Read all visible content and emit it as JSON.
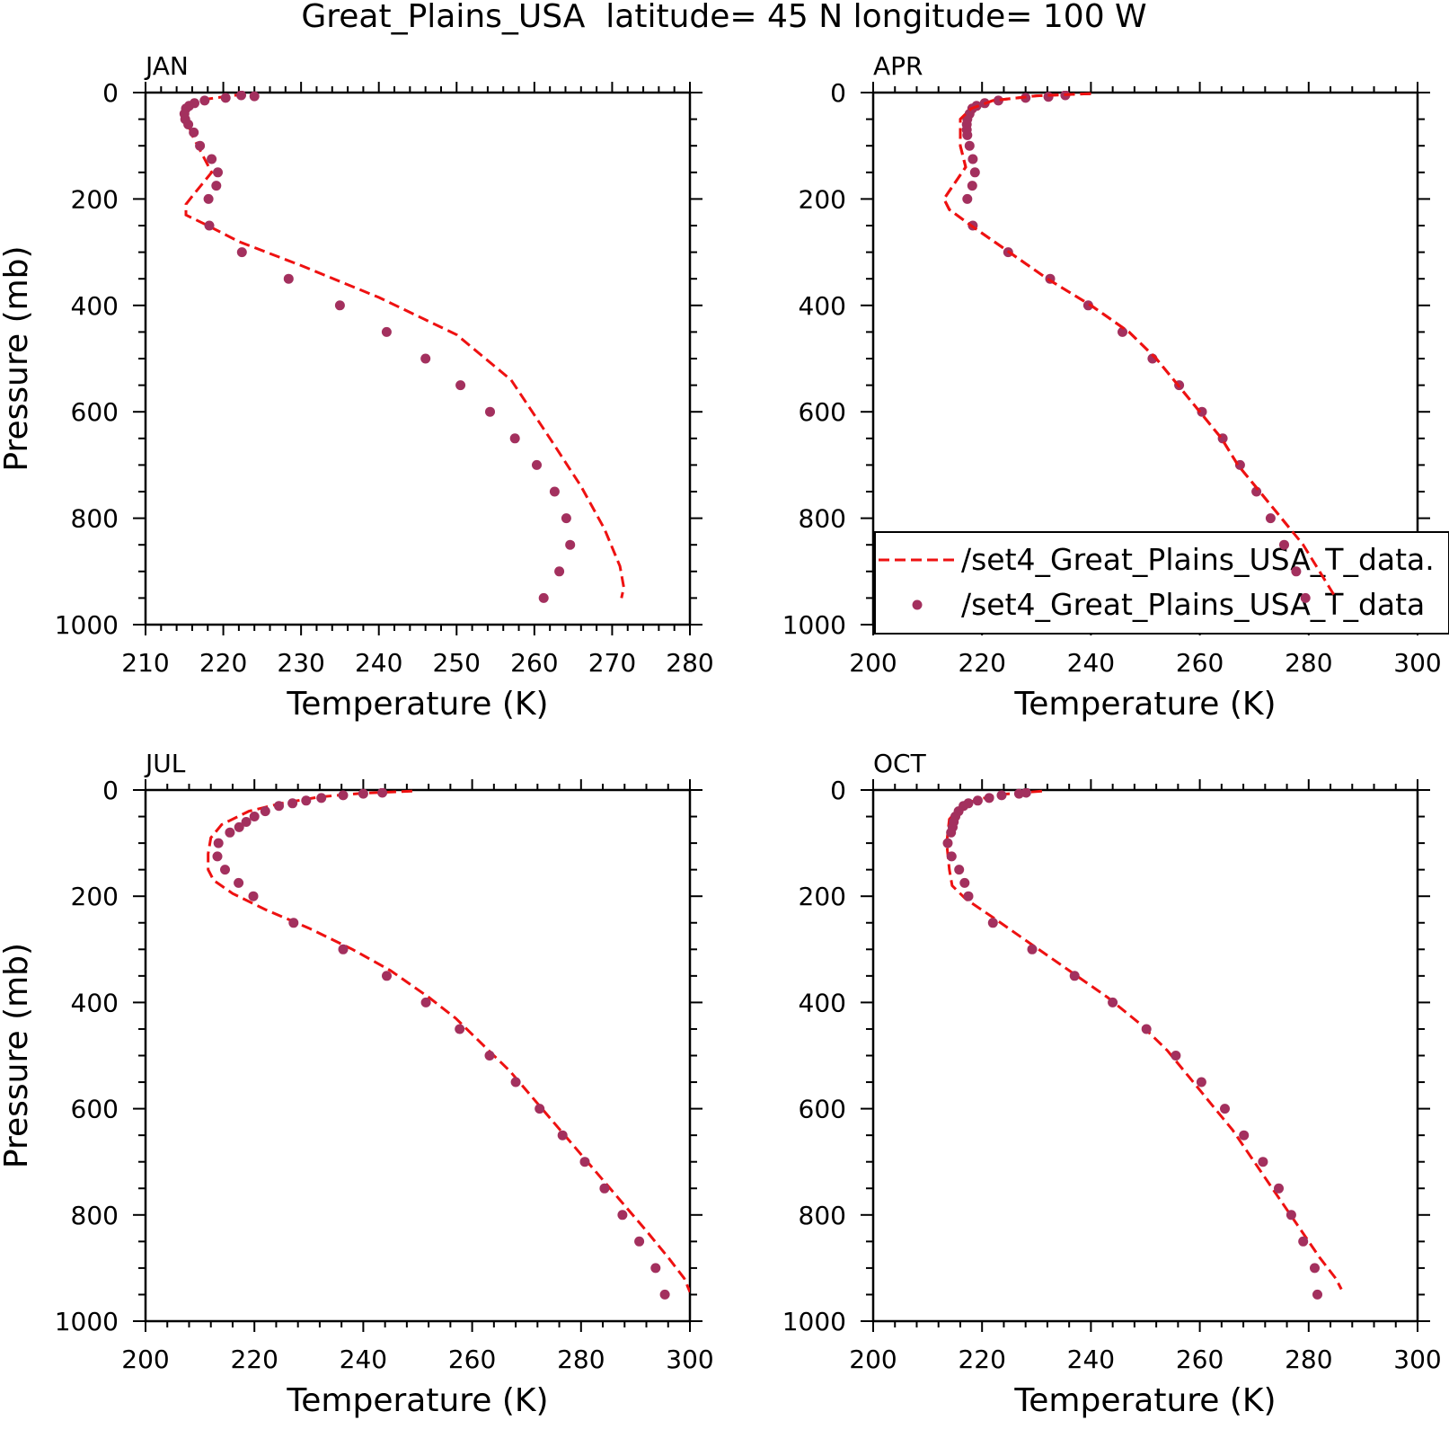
{
  "figure": {
    "title": "Great_Plains_USA  latitude= 45 N longitude= 100 W"
  },
  "legend": {
    "entries": [
      "/set4_Great_Plains_USA_T_data.",
      "/set4_Great_Plains_USA_T_data"
    ]
  },
  "colors": {
    "line": "#ee1111",
    "dots": "#a3305e",
    "axis": "#000000"
  },
  "chart_data": [
    {
      "type": "line",
      "panel_label": "JAN",
      "xlabel": "Temperature (K)",
      "ylabel": "Pressure (mb)",
      "xlim": [
        210,
        280
      ],
      "ylim": [
        1000,
        0
      ],
      "x_ticks": [
        210,
        220,
        230,
        240,
        250,
        260,
        270,
        280
      ],
      "y_ticks": [
        0,
        200,
        400,
        600,
        800,
        1000
      ],
      "legend": false,
      "series": [
        {
          "style": "dashed",
          "points": [
            [
              222.8,
              3
            ],
            [
              221,
              6
            ],
            [
              218,
              12
            ],
            [
              216,
              22
            ],
            [
              215,
              40
            ],
            [
              216,
              80
            ],
            [
              218.5,
              150
            ],
            [
              216,
              195
            ],
            [
              215.2,
              210
            ],
            [
              215.2,
              230
            ],
            [
              218,
              250
            ],
            [
              222,
              280
            ],
            [
              230,
              325
            ],
            [
              240,
              385
            ],
            [
              250,
              455
            ],
            [
              257,
              540
            ],
            [
              262,
              650
            ],
            [
              266,
              740
            ],
            [
              269,
              820
            ],
            [
              271,
              890
            ],
            [
              271.5,
              930
            ],
            [
              271.2,
              950
            ]
          ]
        },
        {
          "style": "markers",
          "points": [
            [
              224,
              7
            ],
            [
              222.3,
              5
            ],
            [
              220.3,
              10
            ],
            [
              217.6,
              15
            ],
            [
              216.3,
              20
            ],
            [
              215.6,
              25
            ],
            [
              215.2,
              30
            ],
            [
              215,
              40
            ],
            [
              215.1,
              50
            ],
            [
              215.5,
              60
            ],
            [
              216.2,
              75
            ],
            [
              217,
              100
            ],
            [
              218.5,
              125
            ],
            [
              219.3,
              150
            ],
            [
              219.1,
              175
            ],
            [
              218.1,
              200
            ],
            [
              218.2,
              250
            ],
            [
              222.4,
              300
            ],
            [
              228.4,
              350
            ],
            [
              235,
              400
            ],
            [
              241,
              450
            ],
            [
              246,
              500
            ],
            [
              250.5,
              550
            ],
            [
              254.3,
              600
            ],
            [
              257.5,
              650
            ],
            [
              260.3,
              700
            ],
            [
              262.6,
              750
            ],
            [
              264.1,
              800
            ],
            [
              264.6,
              850
            ],
            [
              263.2,
              900
            ],
            [
              261.2,
              950
            ]
          ]
        }
      ]
    },
    {
      "type": "line",
      "panel_label": "APR",
      "xlabel": "Temperature (K)",
      "ylabel": "",
      "xlim": [
        200,
        300
      ],
      "ylim": [
        1000,
        0
      ],
      "x_ticks": [
        200,
        220,
        240,
        260,
        280,
        300
      ],
      "y_ticks": [
        0,
        200,
        400,
        600,
        800,
        1000
      ],
      "legend": true,
      "series": [
        {
          "style": "dashed",
          "points": [
            [
              240,
              2
            ],
            [
              230,
              6
            ],
            [
              222,
              15
            ],
            [
              218,
              30
            ],
            [
              216,
              50
            ],
            [
              216,
              100
            ],
            [
              217,
              140
            ],
            [
              214,
              185
            ],
            [
              213,
              200
            ],
            [
              214,
              220
            ],
            [
              218,
              250
            ],
            [
              225,
              300
            ],
            [
              232,
              350
            ],
            [
              240,
              400
            ],
            [
              247,
              450
            ],
            [
              252,
              500
            ],
            [
              256,
              550
            ],
            [
              260,
              600
            ],
            [
              264,
              650
            ],
            [
              267,
              700
            ],
            [
              271,
              750
            ],
            [
              275,
              800
            ],
            [
              279,
              850
            ],
            [
              282,
              900
            ],
            [
              285,
              950
            ]
          ]
        },
        {
          "style": "markers",
          "points": [
            [
              235.3,
              5
            ],
            [
              232.2,
              8
            ],
            [
              228,
              10
            ],
            [
              223,
              15
            ],
            [
              220.5,
              20
            ],
            [
              219,
              25
            ],
            [
              218.2,
              30
            ],
            [
              217.7,
              40
            ],
            [
              217.3,
              50
            ],
            [
              217.2,
              60
            ],
            [
              217.2,
              70
            ],
            [
              217.3,
              80
            ],
            [
              217.7,
              100
            ],
            [
              218.3,
              125
            ],
            [
              218.7,
              150
            ],
            [
              218.2,
              175
            ],
            [
              217.3,
              200
            ],
            [
              218.3,
              250
            ],
            [
              224.8,
              300
            ],
            [
              232.5,
              350
            ],
            [
              239.5,
              400
            ],
            [
              245.8,
              450
            ],
            [
              251.3,
              500
            ],
            [
              256.2,
              550
            ],
            [
              260.4,
              600
            ],
            [
              264.2,
              650
            ],
            [
              267.4,
              700
            ],
            [
              270.4,
              750
            ],
            [
              273,
              800
            ],
            [
              275.5,
              850
            ],
            [
              277.7,
              900
            ],
            [
              279.4,
              950
            ]
          ]
        }
      ]
    },
    {
      "type": "line",
      "panel_label": "JUL",
      "xlabel": "Temperature (K)",
      "ylabel": "Pressure (mb)",
      "xlim": [
        200,
        300
      ],
      "ylim": [
        1000,
        0
      ],
      "x_ticks": [
        200,
        220,
        240,
        260,
        280,
        300
      ],
      "y_ticks": [
        0,
        200,
        400,
        600,
        800,
        1000
      ],
      "legend": false,
      "series": [
        {
          "style": "dashed",
          "points": [
            [
              249,
              2
            ],
            [
              240,
              6
            ],
            [
              232,
              13
            ],
            [
              225,
              25
            ],
            [
              219,
              40
            ],
            [
              214,
              65
            ],
            [
              212,
              90
            ],
            [
              211.5,
              120
            ],
            [
              211.5,
              150
            ],
            [
              212.5,
              170
            ],
            [
              216,
              195
            ],
            [
              222,
              225
            ],
            [
              230,
              260
            ],
            [
              238,
              300
            ],
            [
              245,
              340
            ],
            [
              252,
              390
            ],
            [
              257,
              430
            ],
            [
              262,
              480
            ],
            [
              267,
              530
            ],
            [
              272,
              590
            ],
            [
              277,
              650
            ],
            [
              282,
              710
            ],
            [
              287,
              770
            ],
            [
              292,
              830
            ],
            [
              296,
              880
            ],
            [
              299,
              920
            ],
            [
              300,
              945
            ]
          ]
        },
        {
          "style": "markers",
          "points": [
            [
              243.5,
              5
            ],
            [
              240,
              7
            ],
            [
              236.3,
              10
            ],
            [
              232.3,
              15
            ],
            [
              229.5,
              20
            ],
            [
              227,
              25
            ],
            [
              224.5,
              30
            ],
            [
              222,
              40
            ],
            [
              220,
              50
            ],
            [
              218.5,
              60
            ],
            [
              217.2,
              70
            ],
            [
              215.5,
              80
            ],
            [
              213.4,
              100
            ],
            [
              213.2,
              125
            ],
            [
              214.6,
              150
            ],
            [
              217.1,
              175
            ],
            [
              219.8,
              200
            ],
            [
              227.2,
              250
            ],
            [
              236.3,
              300
            ],
            [
              244.3,
              350
            ],
            [
              251.5,
              400
            ],
            [
              257.7,
              450
            ],
            [
              263.2,
              500
            ],
            [
              268,
              550
            ],
            [
              272.4,
              600
            ],
            [
              276.6,
              650
            ],
            [
              280.7,
              700
            ],
            [
              284.3,
              750
            ],
            [
              287.6,
              800
            ],
            [
              290.7,
              850
            ],
            [
              293.7,
              900
            ],
            [
              295.4,
              950
            ]
          ]
        }
      ]
    },
    {
      "type": "line",
      "panel_label": "OCT",
      "xlabel": "Temperature (K)",
      "ylabel": "",
      "xlim": [
        200,
        300
      ],
      "ylim": [
        1000,
        0
      ],
      "x_ticks": [
        200,
        220,
        240,
        260,
        280,
        300
      ],
      "y_ticks": [
        0,
        200,
        400,
        600,
        800,
        1000
      ],
      "legend": false,
      "series": [
        {
          "style": "dashed",
          "points": [
            [
              231,
              2
            ],
            [
              224,
              8
            ],
            [
              219,
              18
            ],
            [
              216,
              32
            ],
            [
              214,
              55
            ],
            [
              213.5,
              100
            ],
            [
              214,
              150
            ],
            [
              214.5,
              180
            ],
            [
              217,
              205
            ],
            [
              222,
              240
            ],
            [
              229,
              290
            ],
            [
              236,
              340
            ],
            [
              243,
              390
            ],
            [
              249,
              440
            ],
            [
              254,
              490
            ],
            [
              258,
              540
            ],
            [
              262,
              590
            ],
            [
              266,
              640
            ],
            [
              270,
              700
            ],
            [
              274,
              760
            ],
            [
              278,
              820
            ],
            [
              282,
              880
            ],
            [
              285,
              920
            ],
            [
              286,
              940
            ]
          ]
        },
        {
          "style": "markers",
          "points": [
            [
              228.1,
              5
            ],
            [
              226.8,
              7
            ],
            [
              223.6,
              10
            ],
            [
              221.3,
              15
            ],
            [
              219.2,
              20
            ],
            [
              217.5,
              25
            ],
            [
              216.6,
              30
            ],
            [
              215.7,
              40
            ],
            [
              215.1,
              50
            ],
            [
              214.8,
              60
            ],
            [
              214.6,
              70
            ],
            [
              214.3,
              80
            ],
            [
              213.7,
              100
            ],
            [
              214.4,
              125
            ],
            [
              215.8,
              150
            ],
            [
              216.8,
              175
            ],
            [
              217.5,
              200
            ],
            [
              222,
              250
            ],
            [
              229.2,
              300
            ],
            [
              237,
              350
            ],
            [
              244,
              400
            ],
            [
              250.2,
              450
            ],
            [
              255.6,
              500
            ],
            [
              260.3,
              550
            ],
            [
              264.6,
              600
            ],
            [
              268.1,
              650
            ],
            [
              271.6,
              700
            ],
            [
              274.5,
              750
            ],
            [
              276.8,
              800
            ],
            [
              279,
              850
            ],
            [
              281.1,
              900
            ],
            [
              281.6,
              950
            ]
          ]
        }
      ]
    }
  ]
}
